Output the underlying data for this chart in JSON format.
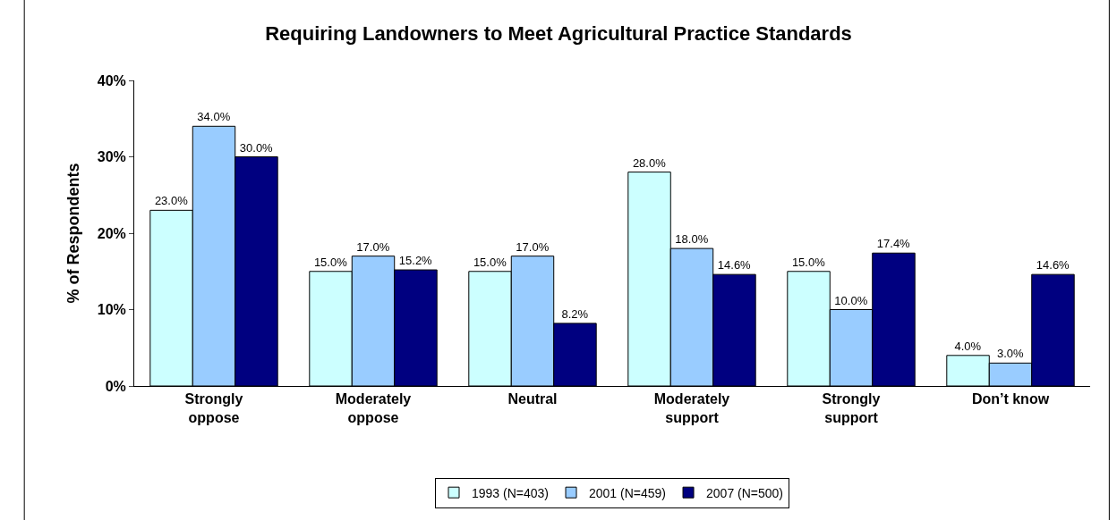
{
  "chart_data": {
    "type": "bar",
    "title": "Requiring Landowners to Meet Agricultural Practice Standards",
    "ylabel": "% of Respondents",
    "categories": [
      "Strongly\noppose",
      "Moderately\noppose",
      "Neutral",
      "Moderately\nsupport",
      "Strongly\nsupport",
      "Don’t know"
    ],
    "series": [
      {
        "name": "1993 (N=403)",
        "color": "#ccffff",
        "values": [
          23.0,
          15.0,
          15.0,
          28.0,
          15.0,
          4.0
        ],
        "value_labels": [
          "23.0%",
          "15.0%",
          "15.0%",
          "28.0%",
          "15.0%",
          "4.0%"
        ]
      },
      {
        "name": "2001 (N=459)",
        "color": "#99ccff",
        "values": [
          34.0,
          17.0,
          17.0,
          18.0,
          10.0,
          3.0
        ],
        "value_labels": [
          "34.0%",
          "17.0%",
          "17.0%",
          "18.0%",
          "10.0%",
          "3.0%"
        ]
      },
      {
        "name": "2007 (N=500)",
        "color": "#000080",
        "values": [
          30.0,
          15.2,
          8.2,
          14.6,
          17.4,
          14.6
        ],
        "value_labels": [
          "30.0%",
          "15.2%",
          "8.2%",
          "14.6%",
          "17.4%",
          "14.6%"
        ]
      }
    ],
    "ylim": [
      0,
      40
    ],
    "yticks": [
      {
        "value": 0,
        "label": "0%"
      },
      {
        "value": 10,
        "label": "10%"
      },
      {
        "value": 20,
        "label": "20%"
      },
      {
        "value": 30,
        "label": "30%"
      },
      {
        "value": 40,
        "label": "40%"
      }
    ],
    "grid": false,
    "legend": "bottom"
  }
}
